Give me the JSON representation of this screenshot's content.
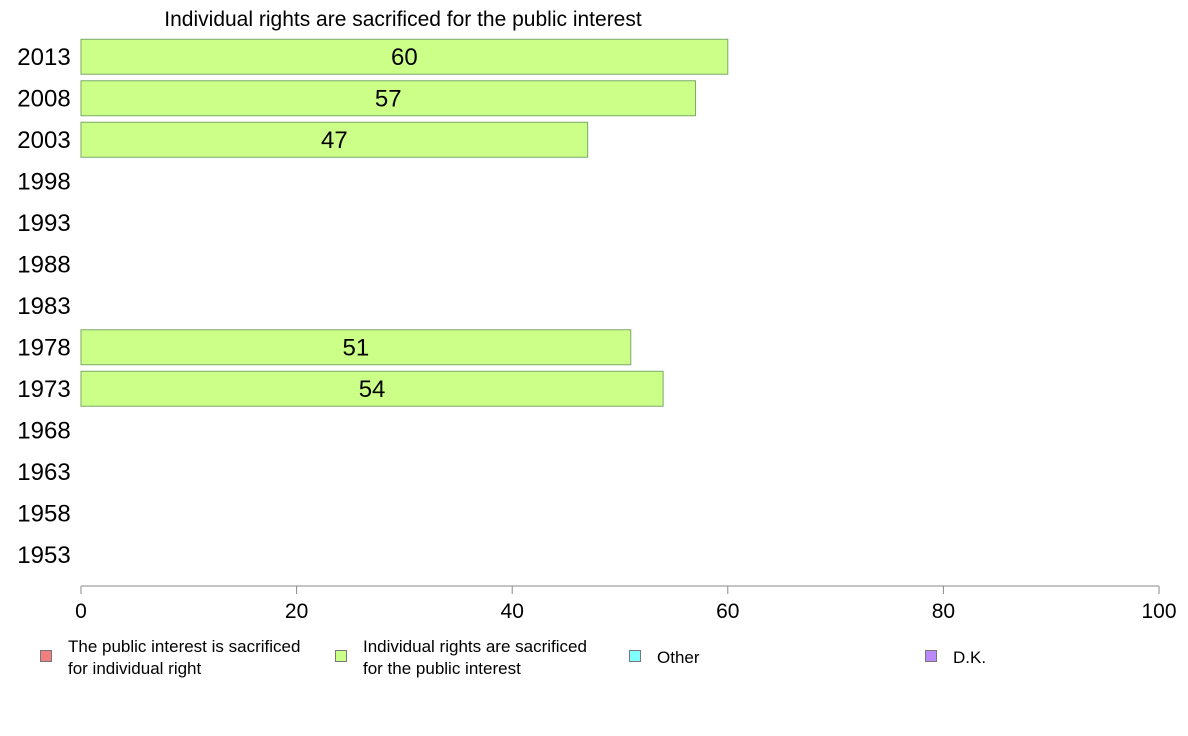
{
  "chart_data": {
    "type": "bar",
    "orientation": "horizontal",
    "title": "Individual rights are sacrificed for the public interest",
    "categories": [
      "2013",
      "2008",
      "2003",
      "1998",
      "1993",
      "1988",
      "1983",
      "1978",
      "1973",
      "1968",
      "1963",
      "1958",
      "1953"
    ],
    "series": [
      {
        "name": "Individual rights are sacrificed for the public interest",
        "color": "#ccff88",
        "values": [
          60,
          57,
          47,
          null,
          null,
          null,
          null,
          51,
          54,
          null,
          null,
          null,
          null
        ]
      }
    ],
    "xlim": [
      0,
      100
    ],
    "xticks": [
      0,
      20,
      40,
      60,
      80,
      100
    ],
    "grid": false,
    "legend_position": "bottom"
  },
  "legend": [
    {
      "label": "The public interest is sacrificed\nfor individual right",
      "color": "#f08080"
    },
    {
      "label": "Individual rights are sacrificed\nfor the public interest",
      "color": "#ccff88"
    },
    {
      "label": "Other",
      "color": "#80ffff"
    },
    {
      "label": "D.K.",
      "color": "#bb88ff"
    }
  ]
}
